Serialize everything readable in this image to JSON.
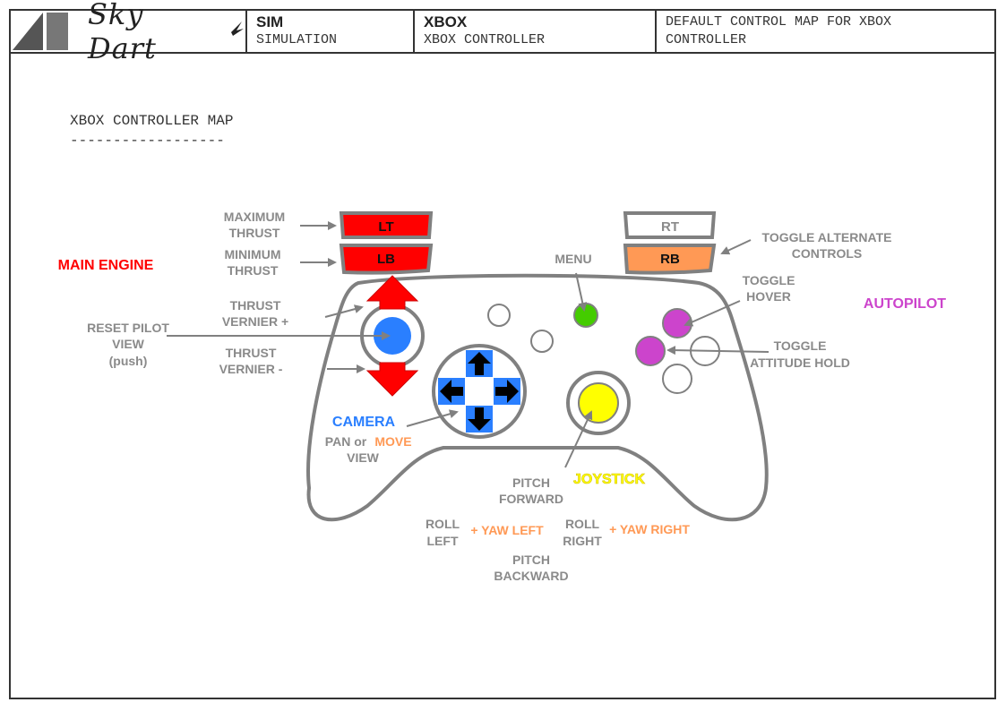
{
  "header": {
    "logo": "Sky Dart",
    "cell2_title": "SIM",
    "cell2_sub": "SIMULATION",
    "cell3_title": "XBOX",
    "cell3_sub": "XBOX CONTROLLER",
    "cell4_line1": "DEFAULT CONTROL MAP FOR XBOX",
    "cell4_line2": "CONTROLLER"
  },
  "map_title": "XBOX CONTROLLER MAP",
  "map_title_rule": "------------------",
  "colors": {
    "red": "#ff0000",
    "orange": "#ff9955",
    "blue": "#2a7fff",
    "green": "#44cc00",
    "magenta": "#cc44cc",
    "yellow": "#ffff00",
    "gray": "#8a8a8a",
    "outline": "#808080"
  },
  "buttons": {
    "lt": "LT",
    "lb": "LB",
    "rt": "RT",
    "rb": "RB"
  },
  "labels": {
    "maximum_thrust_1": "MAXIMUM",
    "maximum_thrust_2": "THRUST",
    "minimum_thrust_1": "MINIMUM",
    "minimum_thrust_2": "THRUST",
    "main_engine": "MAIN ENGINE",
    "thrust_vernier_plus_1": "THRUST",
    "thrust_vernier_plus_2": "VERNIER +",
    "reset_pilot_1": "RESET PILOT",
    "reset_pilot_2": "VIEW",
    "reset_pilot_3": "(push)",
    "thrust_vernier_minus_1": "THRUST",
    "thrust_vernier_minus_2": "VERNIER -",
    "camera": "CAMERA",
    "pan_or": "PAN or",
    "move": "MOVE",
    "view": "VIEW",
    "menu": "MENU",
    "toggle_alt_1": "TOGGLE ALTERNATE",
    "toggle_alt_2": "CONTROLS",
    "toggle_hover_1": "TOGGLE",
    "toggle_hover_2": "HOVER",
    "autopilot": "AUTOPILOT",
    "toggle_att_1": "TOGGLE",
    "toggle_att_2": "ATTITUDE HOLD",
    "joystick": "JOYSTICK",
    "pitch_fwd_1": "PITCH",
    "pitch_fwd_2": "FORWARD",
    "roll_left_1": "ROLL",
    "roll_left_2": "LEFT",
    "yaw_left": "+ YAW LEFT",
    "roll_right_1": "ROLL",
    "roll_right_2": "RIGHT",
    "yaw_right": "+ YAW RIGHT",
    "pitch_back_1": "PITCH",
    "pitch_back_2": "BACKWARD"
  }
}
